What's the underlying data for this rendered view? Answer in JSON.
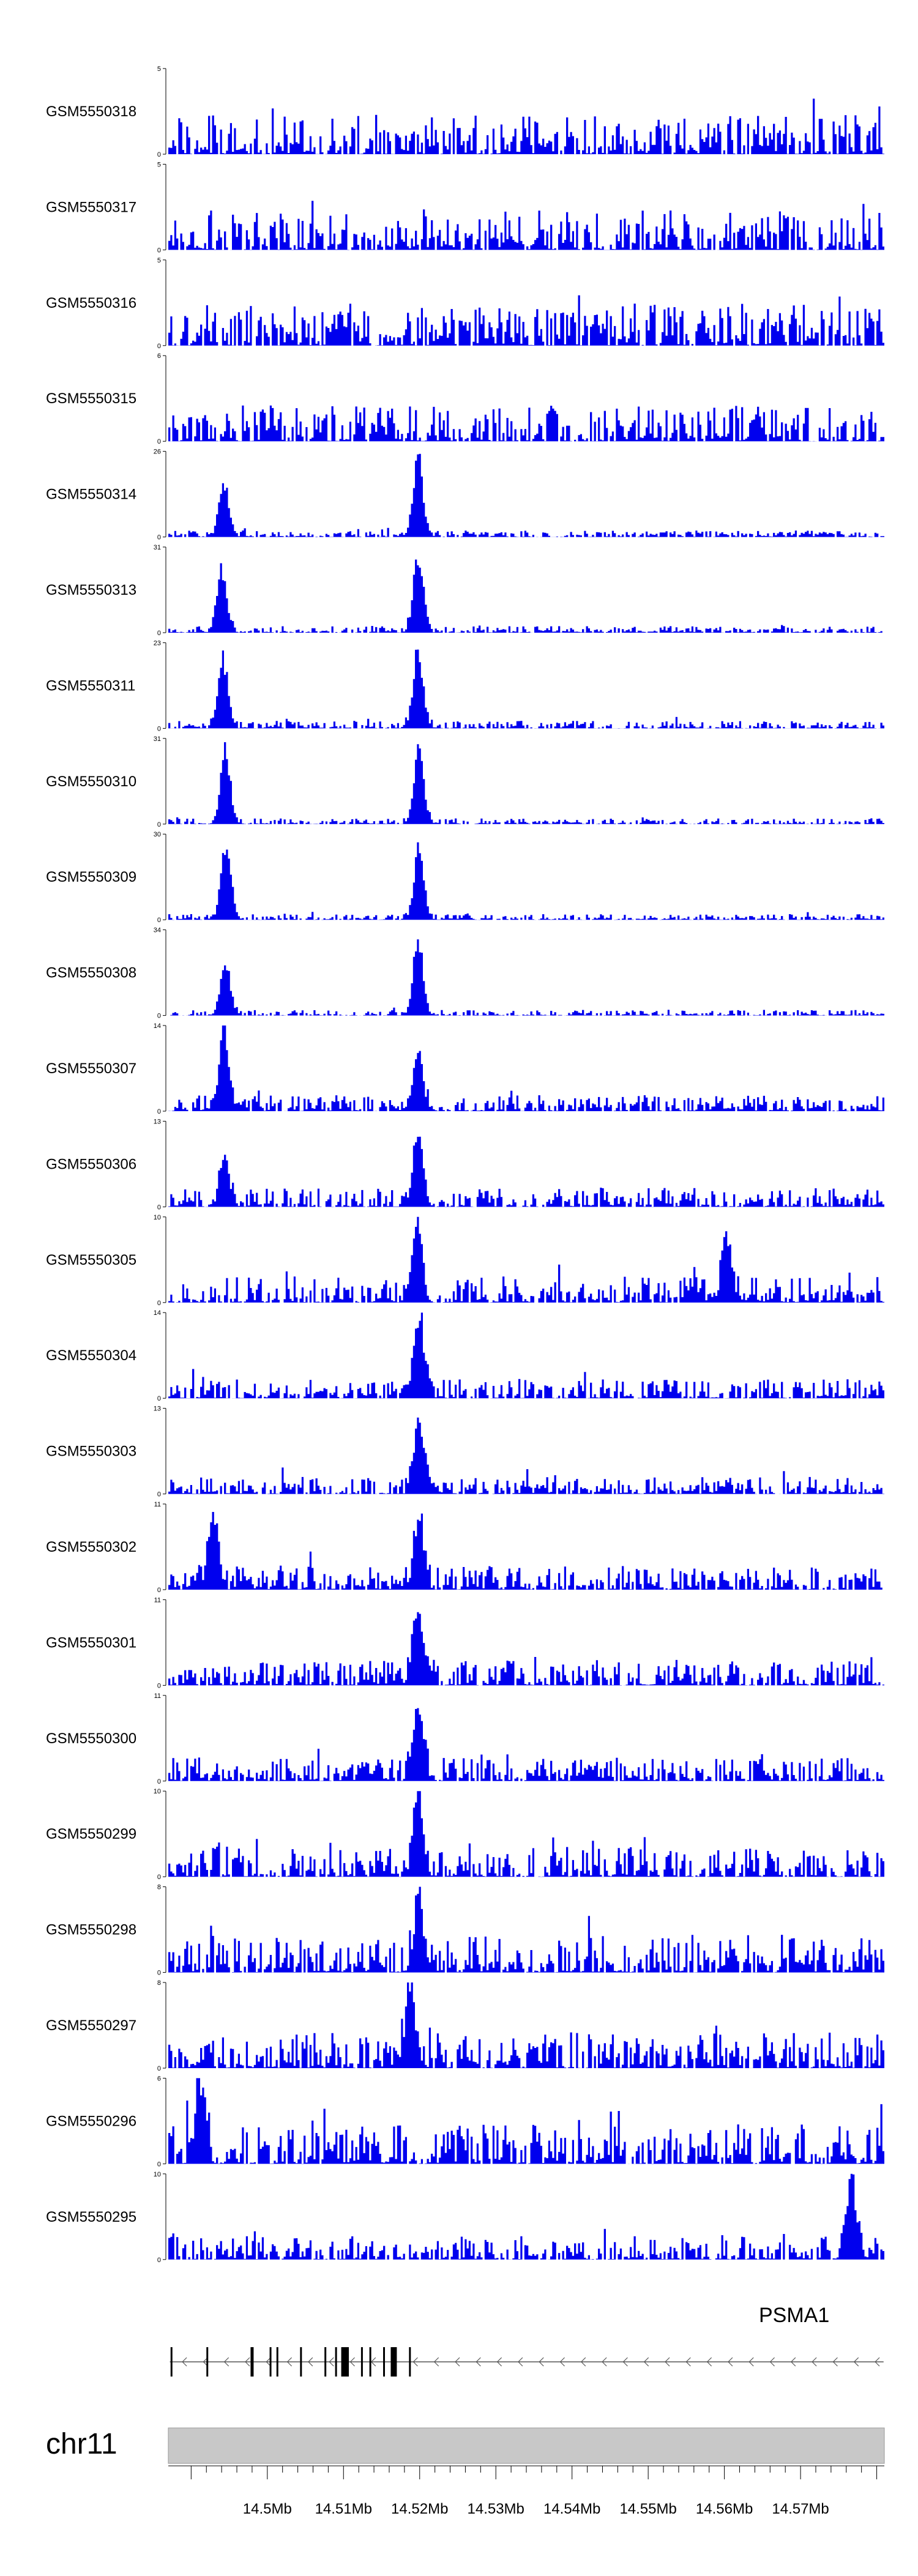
{
  "chart_data": {
    "type": "area",
    "genome_region": {
      "chromosome": "chr11",
      "start_bp": 14487000,
      "end_bp": 14581000
    },
    "tracks": [
      {
        "label": "GSM5550318",
        "ymax": 5,
        "ymax_label": "5",
        "ymin_label": "0",
        "noise": 0.42,
        "peaks": []
      },
      {
        "label": "GSM5550317",
        "ymax": 5,
        "ymax_label": "5",
        "ymin_label": "0",
        "noise": 0.42,
        "peaks": []
      },
      {
        "label": "GSM5550316",
        "ymax": 5,
        "ymax_label": "5",
        "ymin_label": "0",
        "noise": 0.45,
        "peaks": []
      },
      {
        "label": "GSM5550315",
        "ymax": 6,
        "ymax_label": "6",
        "ymin_label": "0",
        "noise": 0.38,
        "peaks": []
      },
      {
        "label": "GSM5550314",
        "ymax": 26,
        "ymax_label": "26",
        "ymin_label": "0",
        "noise": 0.07,
        "peaks": [
          {
            "pos_bp": 14494300,
            "height": 0.7
          },
          {
            "pos_bp": 14519800,
            "height": 1.0
          }
        ]
      },
      {
        "label": "GSM5550313",
        "ymax": 31,
        "ymax_label": "31",
        "ymin_label": "0",
        "noise": 0.07,
        "peaks": [
          {
            "pos_bp": 14494000,
            "height": 0.8
          },
          {
            "pos_bp": 14519800,
            "height": 1.0
          }
        ]
      },
      {
        "label": "GSM5550311",
        "ymax": 23,
        "ymax_label": "23",
        "ymin_label": "0",
        "noise": 0.08,
        "peaks": [
          {
            "pos_bp": 14494200,
            "height": 0.85
          },
          {
            "pos_bp": 14519800,
            "height": 1.0
          }
        ]
      },
      {
        "label": "GSM5550310",
        "ymax": 31,
        "ymax_label": "31",
        "ymin_label": "0",
        "noise": 0.06,
        "peaks": [
          {
            "pos_bp": 14494500,
            "height": 0.95
          },
          {
            "pos_bp": 14519900,
            "height": 1.0
          }
        ]
      },
      {
        "label": "GSM5550309",
        "ymax": 30,
        "ymax_label": "30",
        "ymin_label": "0",
        "noise": 0.06,
        "peaks": [
          {
            "pos_bp": 14494600,
            "height": 1.0
          },
          {
            "pos_bp": 14519900,
            "height": 0.9
          }
        ]
      },
      {
        "label": "GSM5550308",
        "ymax": 34,
        "ymax_label": "34",
        "ymin_label": "0",
        "noise": 0.06,
        "peaks": [
          {
            "pos_bp": 14494500,
            "height": 0.7
          },
          {
            "pos_bp": 14519800,
            "height": 1.0
          }
        ]
      },
      {
        "label": "GSM5550307",
        "ymax": 14,
        "ymax_label": "14",
        "ymin_label": "0",
        "noise": 0.17,
        "peaks": [
          {
            "pos_bp": 14494300,
            "height": 1.0
          },
          {
            "pos_bp": 14519800,
            "height": 0.7
          }
        ]
      },
      {
        "label": "GSM5550306",
        "ymax": 13,
        "ymax_label": "13",
        "ymin_label": "0",
        "noise": 0.2,
        "peaks": [
          {
            "pos_bp": 14494400,
            "height": 0.6
          },
          {
            "pos_bp": 14519800,
            "height": 1.0
          }
        ]
      },
      {
        "label": "GSM5550305",
        "ymax": 10,
        "ymax_label": "10",
        "ymin_label": "0",
        "noise": 0.28,
        "peaks": [
          {
            "pos_bp": 14519700,
            "height": 1.0
          },
          {
            "pos_bp": 14560300,
            "height": 0.8
          }
        ]
      },
      {
        "label": "GSM5550304",
        "ymax": 14,
        "ymax_label": "14",
        "ymin_label": "0",
        "noise": 0.2,
        "peaks": [
          {
            "pos_bp": 14520000,
            "height": 1.0
          }
        ]
      },
      {
        "label": "GSM5550303",
        "ymax": 13,
        "ymax_label": "13",
        "ymin_label": "0",
        "noise": 0.18,
        "peaks": [
          {
            "pos_bp": 14519900,
            "height": 1.0
          }
        ]
      },
      {
        "label": "GSM5550302",
        "ymax": 11,
        "ymax_label": "11",
        "ymin_label": "0",
        "noise": 0.25,
        "peaks": [
          {
            "pos_bp": 14492900,
            "height": 1.0
          },
          {
            "pos_bp": 14519900,
            "height": 0.9
          }
        ]
      },
      {
        "label": "GSM5550301",
        "ymax": 11,
        "ymax_label": "11",
        "ymin_label": "0",
        "noise": 0.27,
        "peaks": [
          {
            "pos_bp": 14519700,
            "height": 1.0
          }
        ]
      },
      {
        "label": "GSM5550300",
        "ymax": 11,
        "ymax_label": "11",
        "ymin_label": "0",
        "noise": 0.25,
        "peaks": [
          {
            "pos_bp": 14519800,
            "height": 1.0
          }
        ]
      },
      {
        "label": "GSM5550299",
        "ymax": 10,
        "ymax_label": "10",
        "ymin_label": "0",
        "noise": 0.32,
        "peaks": [
          {
            "pos_bp": 14519800,
            "height": 1.0
          }
        ]
      },
      {
        "label": "GSM5550298",
        "ymax": 8,
        "ymax_label": "8",
        "ymin_label": "0",
        "noise": 0.4,
        "peaks": [
          {
            "pos_bp": 14519900,
            "height": 0.95
          }
        ]
      },
      {
        "label": "GSM5550297",
        "ymax": 8,
        "ymax_label": "8",
        "ymin_label": "0",
        "noise": 0.38,
        "peaks": [
          {
            "pos_bp": 14518800,
            "height": 1.0
          }
        ]
      },
      {
        "label": "GSM5550296",
        "ymax": 6,
        "ymax_label": "6",
        "ymin_label": "0",
        "noise": 0.42,
        "peaks": [
          {
            "pos_bp": 14491200,
            "height": 0.95
          }
        ]
      },
      {
        "label": "GSM5550295",
        "ymax": 10,
        "ymax_label": "10",
        "ymin_label": "0",
        "noise": 0.25,
        "peaks": [
          {
            "pos_bp": 14576700,
            "height": 1.0
          }
        ]
      }
    ],
    "gene": {
      "name": "PSMA1",
      "strand": "-",
      "start_bp": 14487200,
      "end_bp": 14580900,
      "exons": [
        {
          "start_bp": 14487300,
          "end_bp": 14487500
        },
        {
          "start_bp": 14492000,
          "end_bp": 14492200
        },
        {
          "start_bp": 14497800,
          "end_bp": 14498200
        },
        {
          "start_bp": 14500300,
          "end_bp": 14500500
        },
        {
          "start_bp": 14501200,
          "end_bp": 14501400
        },
        {
          "start_bp": 14504300,
          "end_bp": 14504500
        },
        {
          "start_bp": 14507500,
          "end_bp": 14507700
        },
        {
          "start_bp": 14508900,
          "end_bp": 14509100
        },
        {
          "start_bp": 14509700,
          "end_bp": 14510700
        },
        {
          "start_bp": 14512300,
          "end_bp": 14512500
        },
        {
          "start_bp": 14513400,
          "end_bp": 14513600
        },
        {
          "start_bp": 14515200,
          "end_bp": 14515400
        },
        {
          "start_bp": 14516200,
          "end_bp": 14517000
        },
        {
          "start_bp": 14518600,
          "end_bp": 14518800
        }
      ]
    },
    "chromosome_label": "chr11",
    "x_ticks": [
      {
        "pos_bp": 14500000,
        "label": "14.5Mb"
      },
      {
        "pos_bp": 14510000,
        "label": "14.51Mb"
      },
      {
        "pos_bp": 14520000,
        "label": "14.52Mb"
      },
      {
        "pos_bp": 14530000,
        "label": "14.53Mb"
      },
      {
        "pos_bp": 14540000,
        "label": "14.54Mb"
      },
      {
        "pos_bp": 14550000,
        "label": "14.55Mb"
      },
      {
        "pos_bp": 14560000,
        "label": "14.56Mb"
      },
      {
        "pos_bp": 14570000,
        "label": "14.57Mb"
      }
    ],
    "colors": {
      "signal": "#0000ee",
      "ideogram": "#c8c8c8",
      "exon": "#000000",
      "intron": "#555555",
      "axis": "#000000"
    }
  }
}
